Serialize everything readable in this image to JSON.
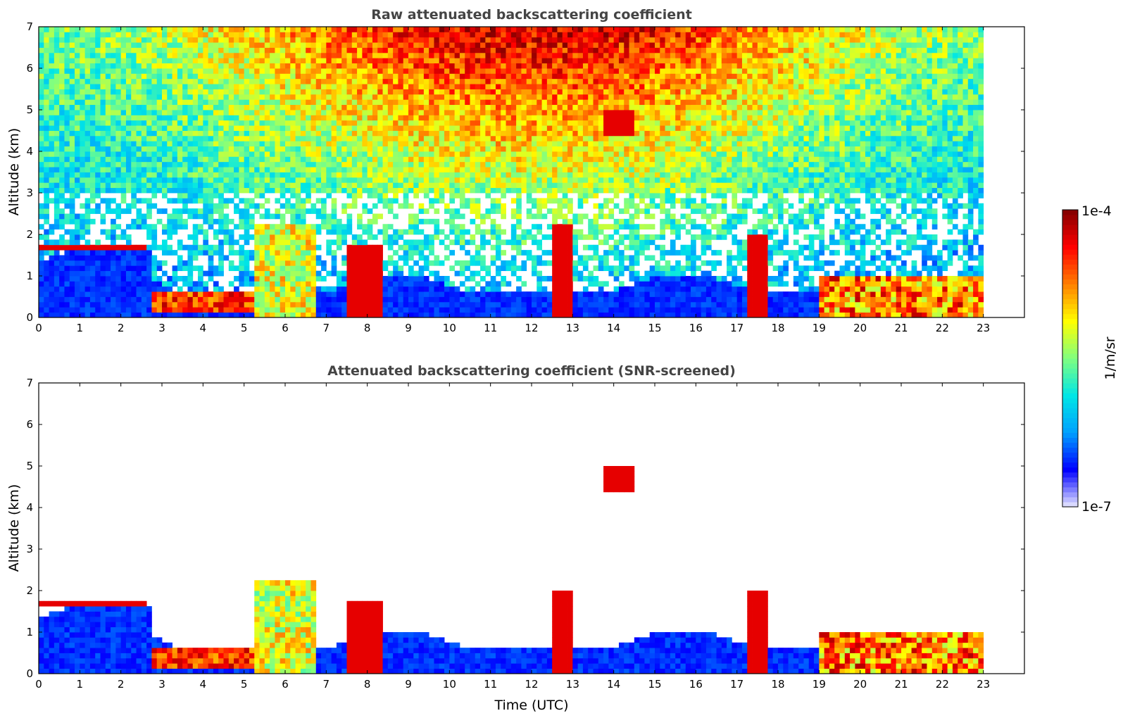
{
  "chart_data": [
    {
      "type": "heatmap",
      "title": "Raw attenuated backscattering coefficient",
      "xlabel": "",
      "ylabel": "Altitude (km)",
      "xlim": [
        0,
        24
      ],
      "ylim": [
        0,
        7
      ],
      "x_ticks": [
        "0",
        "1",
        "2",
        "3",
        "4",
        "5",
        "6",
        "7",
        "8",
        "9",
        "10",
        "11",
        "12",
        "13",
        "14",
        "15",
        "16",
        "17",
        "18",
        "19",
        "20",
        "21",
        "22",
        "23"
      ],
      "y_ticks": [
        "0",
        "1",
        "2",
        "3",
        "4",
        "5",
        "6",
        "7"
      ],
      "data_end_hour": 23,
      "grid": false,
      "features": [
        {
          "kind": "cloud_layer",
          "x": [
            0,
            2.6
          ],
          "y": [
            1.6,
            1.8
          ],
          "level": "high"
        },
        {
          "kind": "boundary_layer",
          "x": [
            2.7,
            5.2
          ],
          "y": [
            0.1,
            0.6
          ],
          "level": "high"
        },
        {
          "kind": "convective_columns",
          "x": [
            5.3,
            6.7
          ],
          "y": [
            0,
            2.2
          ],
          "level": "medium"
        },
        {
          "kind": "cloud",
          "x": [
            7.5,
            8.4
          ],
          "y": [
            0,
            1.8
          ],
          "level": "high"
        },
        {
          "kind": "cloud",
          "x": [
            12.5,
            13.0
          ],
          "y": [
            0,
            2.3
          ],
          "level": "high"
        },
        {
          "kind": "cirrus",
          "x": [
            13.8,
            14.5
          ],
          "y": [
            4.4,
            5.0
          ],
          "level": "high"
        },
        {
          "kind": "cloud",
          "x": [
            17.2,
            17.8
          ],
          "y": [
            0,
            2.0
          ],
          "level": "high"
        },
        {
          "kind": "aerosol_layer",
          "x": [
            19.0,
            23.0
          ],
          "y": [
            0,
            1.0
          ],
          "level": "high"
        }
      ]
    },
    {
      "type": "heatmap",
      "title": "Attenuated backscattering coefficient (SNR-screened)",
      "xlabel": "Time (UTC)",
      "ylabel": "Altitude (km)",
      "xlim": [
        0,
        24
      ],
      "ylim": [
        0,
        7
      ],
      "x_ticks": [
        "0",
        "1",
        "2",
        "3",
        "4",
        "5",
        "6",
        "7",
        "8",
        "9",
        "10",
        "11",
        "12",
        "13",
        "14",
        "15",
        "16",
        "17",
        "18",
        "19",
        "20",
        "21",
        "22",
        "23"
      ],
      "y_ticks": [
        "0",
        "1",
        "2",
        "3",
        "4",
        "5",
        "6",
        "7"
      ],
      "data_end_hour": 23,
      "grid": false,
      "features": [
        {
          "kind": "cloud_layer",
          "x": [
            0,
            2.6
          ],
          "y": [
            1.6,
            1.8
          ],
          "level": "high"
        },
        {
          "kind": "boundary_layer",
          "x": [
            2.7,
            5.2
          ],
          "y": [
            0.1,
            0.6
          ],
          "level": "high"
        },
        {
          "kind": "convective_columns",
          "x": [
            5.3,
            6.7
          ],
          "y": [
            0,
            2.2
          ],
          "level": "medium"
        },
        {
          "kind": "cloud",
          "x": [
            7.5,
            8.4
          ],
          "y": [
            0,
            1.8
          ],
          "level": "high"
        },
        {
          "kind": "cloud",
          "x": [
            12.5,
            13.0
          ],
          "y": [
            0,
            2.0
          ],
          "level": "high"
        },
        {
          "kind": "cirrus",
          "x": [
            13.8,
            14.5
          ],
          "y": [
            4.4,
            5.0
          ],
          "level": "high"
        },
        {
          "kind": "cloud",
          "x": [
            17.2,
            17.8
          ],
          "y": [
            0,
            2.0
          ],
          "level": "high"
        },
        {
          "kind": "aerosol_layer",
          "x": [
            19.0,
            23.0
          ],
          "y": [
            0,
            1.0
          ],
          "level": "high"
        }
      ]
    },
    {
      "type": "colorbar",
      "label": "1/m/sr",
      "min_label": "1e-7",
      "max_label": "1e-4",
      "colormap": [
        "#e8e8ff",
        "#0000ff",
        "#00a0ff",
        "#00e6e6",
        "#80ff80",
        "#ffff00",
        "#ff8000",
        "#ff0000",
        "#800000"
      ]
    }
  ]
}
